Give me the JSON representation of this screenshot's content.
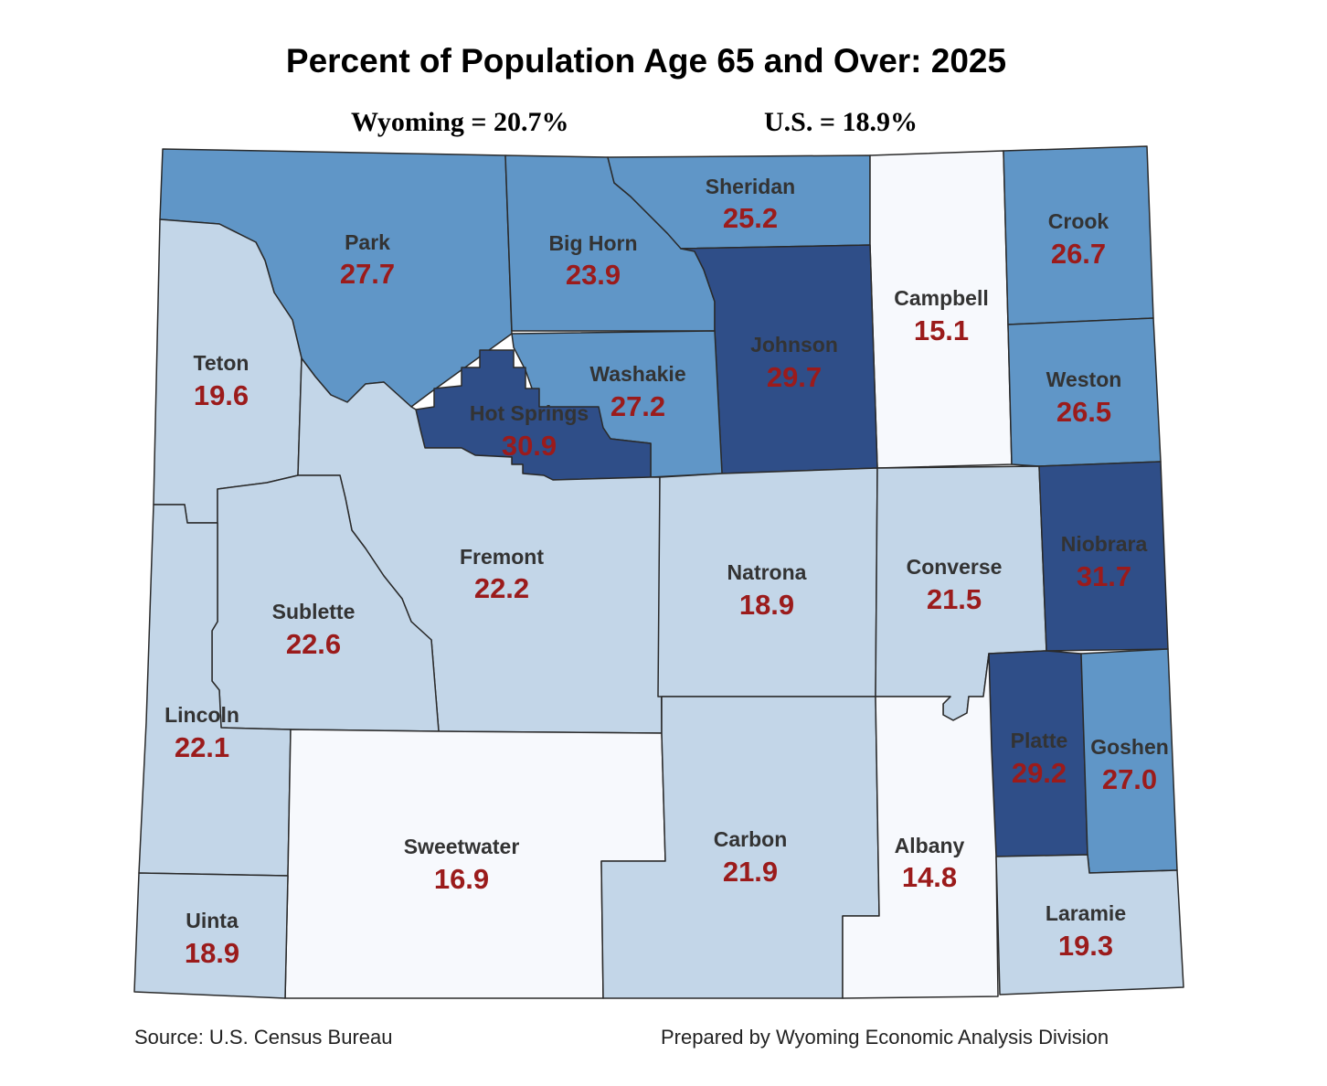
{
  "title": "Percent of Population Age 65 and Over: 2025",
  "wyoming_stat": "Wyoming = 20.7%",
  "us_stat": "U.S. = 18.9%",
  "source": "Source: U.S. Census Bureau",
  "prepared_by": "Prepared by Wyoming Economic Analysis Division",
  "colors": {
    "lightest": "#f7f9fd",
    "light": "#c3d6e8",
    "medium": "#6096c7",
    "dark": "#2f4e88",
    "value_text": "#9b1b1b"
  },
  "counties": {
    "park": {
      "name": "Park",
      "value": "27.7",
      "tier": "medium"
    },
    "big_horn": {
      "name": "Big Horn",
      "value": "23.9",
      "tier": "medium"
    },
    "sheridan": {
      "name": "Sheridan",
      "value": "25.2",
      "tier": "medium"
    },
    "campbell": {
      "name": "Campbell",
      "value": "15.1",
      "tier": "lightest"
    },
    "crook": {
      "name": "Crook",
      "value": "26.7",
      "tier": "medium"
    },
    "teton": {
      "name": "Teton",
      "value": "19.6",
      "tier": "light"
    },
    "hot_springs": {
      "name": "Hot Springs",
      "value": "30.9",
      "tier": "dark"
    },
    "washakie": {
      "name": "Washakie",
      "value": "27.2",
      "tier": "medium"
    },
    "johnson": {
      "name": "Johnson",
      "value": "29.7",
      "tier": "dark"
    },
    "weston": {
      "name": "Weston",
      "value": "26.5",
      "tier": "medium"
    },
    "fremont": {
      "name": "Fremont",
      "value": "22.2",
      "tier": "light"
    },
    "natrona": {
      "name": "Natrona",
      "value": "18.9",
      "tier": "light"
    },
    "converse": {
      "name": "Converse",
      "value": "21.5",
      "tier": "light"
    },
    "niobrara": {
      "name": "Niobrara",
      "value": "31.7",
      "tier": "dark"
    },
    "sublette": {
      "name": "Sublette",
      "value": "22.6",
      "tier": "light"
    },
    "lincoln": {
      "name": "Lincoln",
      "value": "22.1",
      "tier": "light"
    },
    "platte": {
      "name": "Platte",
      "value": "29.2",
      "tier": "dark"
    },
    "goshen": {
      "name": "Goshen",
      "value": "27.0",
      "tier": "medium"
    },
    "sweetwater": {
      "name": "Sweetwater",
      "value": "16.9",
      "tier": "lightest"
    },
    "carbon": {
      "name": "Carbon",
      "value": "21.9",
      "tier": "light"
    },
    "albany": {
      "name": "Albany",
      "value": "14.8",
      "tier": "lightest"
    },
    "uinta": {
      "name": "Uinta",
      "value": "18.9",
      "tier": "light"
    },
    "laramie": {
      "name": "Laramie",
      "value": "19.3",
      "tier": "light"
    }
  }
}
